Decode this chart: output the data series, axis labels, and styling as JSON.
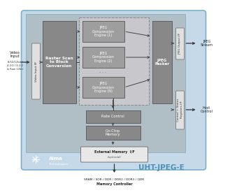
{
  "product_name": "UHT-JPEG-E",
  "bg_outer": "#c5d9e8",
  "bg_inner": "#b0bec5",
  "block_dark": "#888888",
  "block_mid": "#9e9e9e",
  "block_io": "#e0e0e0",
  "block_ext": "#e8e8e8",
  "block_dashed_bg": "#cacaca",
  "jpeg_engines": [
    "JPEG\nCompression\nEngine (1)",
    "JPEG\nCompression\nEngine (2)",
    "JPEG\nCompression\nEngine (N)"
  ],
  "raster_text": "Raster Scan\nto Block\nConversion",
  "packer_text": "JPEG\nPacker",
  "rate_text": "Rate Control",
  "onchip_text": "On-Chip\nMemory",
  "extmem_text": "External Memory  I/F",
  "extmem_sub": "(optional)",
  "video_if_text": "Video Input I/F",
  "jpeg_out_text": "JPEG Output I/F",
  "ctrl_if_text": "Control + Status\nRegisters I/F",
  "video_input_label": "Video\nInput",
  "video_formats": "8/10/12bit /\n4:2:0 / 4:2:2\n& Raw 12bit",
  "jpeg_stream_label": "JPEG\nStream",
  "host_ctrl_label": "Host\nControl",
  "mem_types": "SRAM / SDR / DDR / DDR2 / DDR3 / QDR",
  "mem_ctrl": "Memory Controller"
}
